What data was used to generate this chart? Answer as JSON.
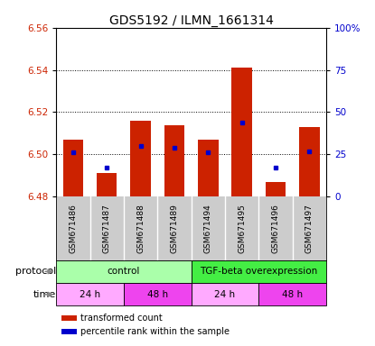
{
  "title": "GDS5192 / ILMN_1661314",
  "samples": [
    "GSM671486",
    "GSM671487",
    "GSM671488",
    "GSM671489",
    "GSM671494",
    "GSM671495",
    "GSM671496",
    "GSM671497"
  ],
  "red_values": [
    6.507,
    6.491,
    6.516,
    6.514,
    6.507,
    6.541,
    6.487,
    6.513
  ],
  "blue_values_pct": [
    26,
    17,
    30,
    29,
    26,
    44,
    17,
    27
  ],
  "ylim_left": [
    6.48,
    6.56
  ],
  "ylim_right": [
    0,
    100
  ],
  "yticks_left": [
    6.48,
    6.5,
    6.52,
    6.54,
    6.56
  ],
  "yticks_right": [
    0,
    25,
    50,
    75,
    100
  ],
  "ytick_labels_right": [
    "0",
    "25",
    "50",
    "75",
    "100%"
  ],
  "bar_bottom": 6.48,
  "bar_color": "#cc2200",
  "dot_color": "#0000cc",
  "legend_red": "transformed count",
  "legend_blue": "percentile rank within the sample",
  "title_fontsize": 10,
  "axis_color_left": "#cc2200",
  "axis_color_right": "#0000cc",
  "protocol_data": [
    {
      "start": 0,
      "end": 4,
      "color": "#aaffaa",
      "label": "control"
    },
    {
      "start": 4,
      "end": 8,
      "color": "#44ee44",
      "label": "TGF-beta overexpression"
    }
  ],
  "time_data": [
    {
      "start": 0,
      "end": 2,
      "color": "#ffaaff",
      "label": "24 h"
    },
    {
      "start": 2,
      "end": 4,
      "color": "#ee44ee",
      "label": "48 h"
    },
    {
      "start": 4,
      "end": 6,
      "color": "#ffaaff",
      "label": "24 h"
    },
    {
      "start": 6,
      "end": 8,
      "color": "#ee44ee",
      "label": "48 h"
    }
  ],
  "label_bg_color": "#cccccc",
  "fig_width": 4.15,
  "fig_height": 3.84,
  "dpi": 100
}
